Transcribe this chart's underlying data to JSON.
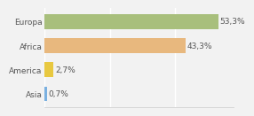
{
  "categories": [
    "Europa",
    "Africa",
    "America",
    "Asia"
  ],
  "values": [
    53.3,
    43.3,
    2.7,
    0.7
  ],
  "labels": [
    "53,3%",
    "43,3%",
    "2,7%",
    "0,7%"
  ],
  "bar_colors": [
    "#a8bf7c",
    "#e8b87e",
    "#e8c840",
    "#7ab0e0"
  ],
  "xlim": [
    0,
    58
  ],
  "background_color": "#f2f2f2",
  "label_fontsize": 6.5,
  "tick_fontsize": 6.5,
  "bar_height": 0.62
}
